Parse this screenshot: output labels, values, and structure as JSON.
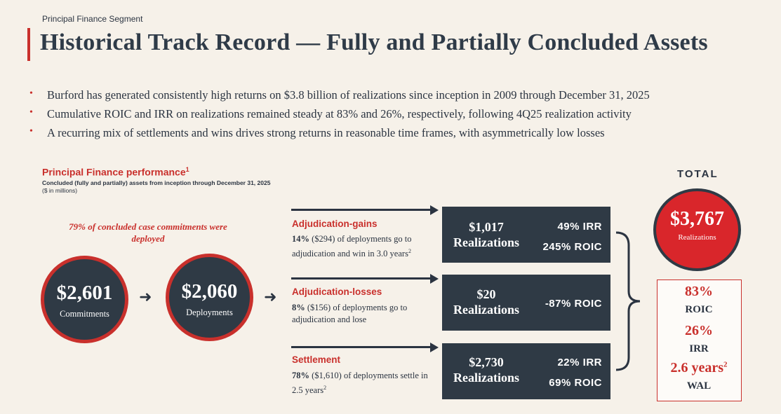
{
  "header": {
    "segment": "Principal Finance Segment",
    "title": "Historical Track Record — Fully and Partially Concluded Assets"
  },
  "bullets": [
    "Burford has generated consistently high returns on $3.8 billion of realizations since inception in 2009 through December 31, 2025",
    "Cumulative ROIC and IRR on realizations remained steady at 83% and 26%, respectively, following 4Q25 realization activity",
    "A recurring mix of settlements and wins drives strong returns in reasonable time frames, with asymmetrically low losses"
  ],
  "bullet_symbol": "•",
  "performance": {
    "title": "Principal Finance performance",
    "footnote": "1",
    "subtitle": "Concluded (fully and partially) assets from inception through December 31, 2025",
    "unit": "($ in millions)"
  },
  "deployed_note": "79% of concluded case commitments were deployed",
  "commitments": {
    "value": "$2,601",
    "label": "Commitments"
  },
  "deployments": {
    "value": "$2,060",
    "label": "Deployments"
  },
  "arrow_glyph": "➜",
  "categories": [
    {
      "title": "Adjudication-gains",
      "desc_bold": "14%",
      "desc_rest": " ($294) of deployments go to adjudication and win in 3.0 years",
      "desc_sup": "2",
      "realizations_value": "$1,017",
      "realizations_label": "Realizations",
      "metric1": "49% IRR",
      "metric2": "245% ROIC"
    },
    {
      "title": "Adjudication-losses",
      "desc_bold": "8%",
      "desc_rest": " ($156) of deployments go to adjudication and lose",
      "desc_sup": "",
      "realizations_value": "$20",
      "realizations_label": "Realizations",
      "metric1": "-87% ROIC",
      "metric2": ""
    },
    {
      "title": "Settlement",
      "desc_bold": "78%",
      "desc_rest": " ($1,610) of deployments settle in 2.5 years",
      "desc_sup": "2",
      "realizations_value": "$2,730",
      "realizations_label": "Realizations",
      "metric1": "22% IRR",
      "metric2": "69% ROIC"
    }
  ],
  "total": {
    "label": "TOTAL",
    "value": "$3,767",
    "sublabel": "Realizations",
    "roic_value": "83%",
    "roic_label": "ROIC",
    "irr_value": "26%",
    "irr_label": "IRR",
    "wal_value": "2.6 years",
    "wal_sup": "2",
    "wal_label": "WAL"
  },
  "colors": {
    "accent": "#c9302c",
    "dark": "#2f3a45",
    "background": "#f6f1e9",
    "total_red": "#d9262b"
  }
}
